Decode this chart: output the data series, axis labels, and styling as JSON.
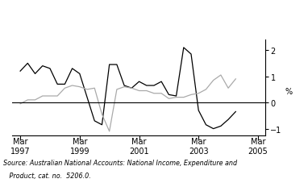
{
  "gdp_per_hour": [
    1.2,
    1.5,
    1.1,
    1.4,
    1.3,
    0.7,
    0.7,
    1.3,
    1.1,
    0.2,
    -0.7,
    -0.85,
    1.45,
    1.45,
    0.65,
    0.55,
    0.8,
    0.65,
    0.65,
    0.8,
    0.3,
    0.25,
    2.1,
    1.85,
    -0.3,
    -0.85,
    -1.0,
    -0.9,
    -0.65,
    -0.35
  ],
  "hours_worked": [
    -0.05,
    0.1,
    0.1,
    0.25,
    0.25,
    0.25,
    0.55,
    0.65,
    0.6,
    0.5,
    0.55,
    -0.45,
    -1.1,
    0.5,
    0.6,
    0.55,
    0.45,
    0.45,
    0.35,
    0.35,
    0.15,
    0.2,
    0.2,
    0.3,
    0.35,
    0.5,
    0.85,
    1.05,
    0.55,
    0.9
  ],
  "n_gdp": 30,
  "n_hours": 30,
  "xlim": [
    1996.9,
    2005.4
  ],
  "ylim": [
    -1.25,
    2.4
  ],
  "yticks": [
    -1,
    0,
    1,
    2
  ],
  "xtick_years": [
    1997,
    1999,
    2001,
    2003,
    2005
  ],
  "ylabel": "%",
  "gdp_color": "#000000",
  "hours_color": "#aaaaaa",
  "source_line1": "Source: Australian National Accounts: National Income, Expenditure and",
  "source_line2": "   Product, cat. no.  5206.0.",
  "background_color": "#ffffff",
  "line_width": 0.9,
  "legend_fontsize": 6.5,
  "tick_fontsize": 7.0,
  "source_fontsize": 5.8
}
